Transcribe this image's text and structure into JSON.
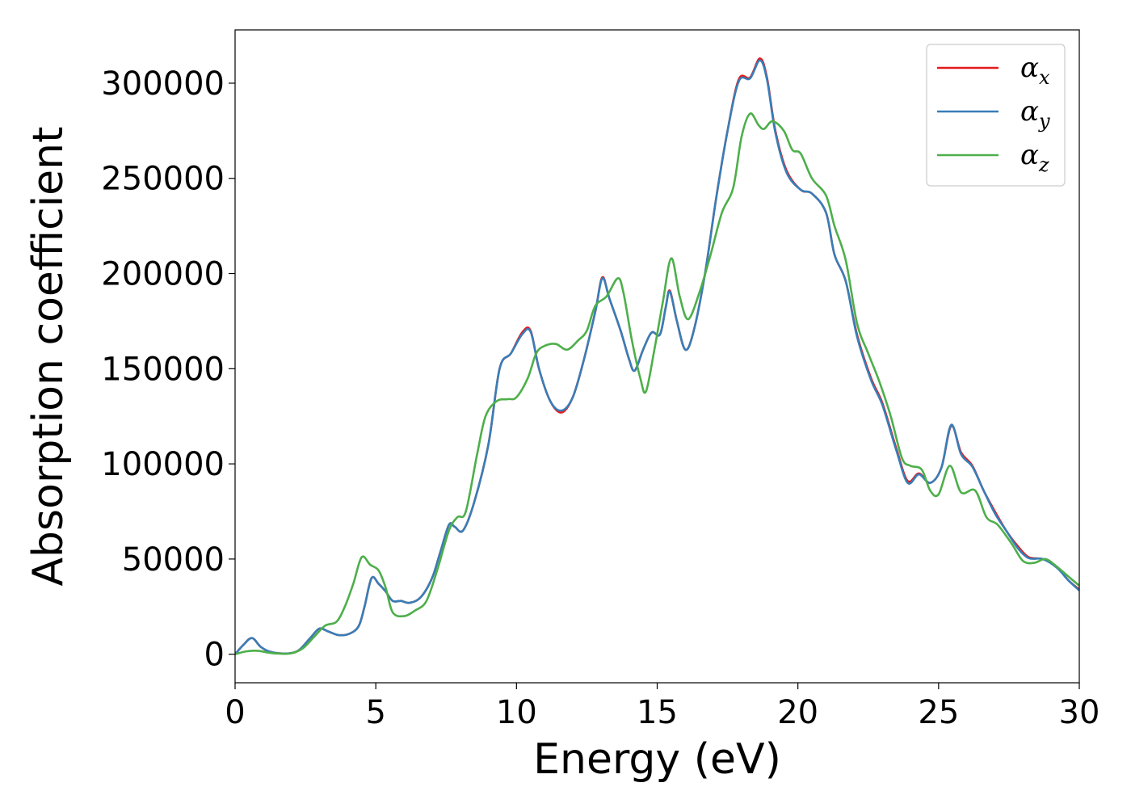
{
  "chart_data": {
    "type": "line",
    "title": "",
    "xlabel": "Energy (eV)",
    "ylabel": "Absorption coefficient",
    "xlim": [
      0,
      30
    ],
    "ylim": [
      -15000,
      328000
    ],
    "xticks": [
      0,
      5,
      10,
      15,
      20,
      25,
      30
    ],
    "yticks": [
      0,
      50000,
      100000,
      150000,
      200000,
      250000,
      300000
    ],
    "grid": false,
    "legend_position": "top-right",
    "series": [
      {
        "name": "α_x",
        "legend_main": "α",
        "legend_sub": "x",
        "color": "#e41a1c",
        "points": [
          [
            0,
            0
          ],
          [
            0.3,
            5000
          ],
          [
            0.6,
            8500
          ],
          [
            0.9,
            4000
          ],
          [
            1.2,
            1500
          ],
          [
            1.6,
            400
          ],
          [
            2.0,
            600
          ],
          [
            2.3,
            2500
          ],
          [
            2.7,
            9000
          ],
          [
            3.0,
            13500
          ],
          [
            3.3,
            12000
          ],
          [
            3.7,
            10000
          ],
          [
            4.1,
            11000
          ],
          [
            4.4,
            15000
          ],
          [
            4.6,
            25000
          ],
          [
            4.85,
            40000
          ],
          [
            5.1,
            37000
          ],
          [
            5.35,
            33000
          ],
          [
            5.6,
            28000
          ],
          [
            5.9,
            28000
          ],
          [
            6.2,
            27000
          ],
          [
            6.6,
            30000
          ],
          [
            7.0,
            40000
          ],
          [
            7.3,
            54000
          ],
          [
            7.6,
            68000
          ],
          [
            7.8,
            67000
          ],
          [
            8.1,
            65000
          ],
          [
            8.5,
            80000
          ],
          [
            9.0,
            110000
          ],
          [
            9.4,
            150000
          ],
          [
            9.8,
            158000
          ],
          [
            10.2,
            169000
          ],
          [
            10.5,
            170000
          ],
          [
            10.8,
            150000
          ],
          [
            11.2,
            133000
          ],
          [
            11.6,
            127000
          ],
          [
            12.0,
            135000
          ],
          [
            12.4,
            155000
          ],
          [
            12.8,
            180000
          ],
          [
            13.05,
            198000
          ],
          [
            13.3,
            187000
          ],
          [
            13.7,
            170000
          ],
          [
            14.0,
            155000
          ],
          [
            14.2,
            149000
          ],
          [
            14.5,
            160000
          ],
          [
            14.8,
            169000
          ],
          [
            15.1,
            168000
          ],
          [
            15.3,
            182000
          ],
          [
            15.45,
            191000
          ],
          [
            15.7,
            175000
          ],
          [
            16.0,
            160000
          ],
          [
            16.3,
            170000
          ],
          [
            16.7,
            200000
          ],
          [
            17.1,
            240000
          ],
          [
            17.5,
            275000
          ],
          [
            17.9,
            302000
          ],
          [
            18.3,
            303000
          ],
          [
            18.65,
            313000
          ],
          [
            18.9,
            303000
          ],
          [
            19.2,
            275000
          ],
          [
            19.6,
            254000
          ],
          [
            20.1,
            244000
          ],
          [
            20.5,
            242000
          ],
          [
            21.0,
            232000
          ],
          [
            21.3,
            210000
          ],
          [
            21.7,
            196000
          ],
          [
            22.1,
            168000
          ],
          [
            22.6,
            145000
          ],
          [
            23.0,
            132000
          ],
          [
            23.5,
            108000
          ],
          [
            23.9,
            91000
          ],
          [
            24.3,
            95000
          ],
          [
            24.7,
            90000
          ],
          [
            25.1,
            98000
          ],
          [
            25.45,
            120000
          ],
          [
            25.8,
            106000
          ],
          [
            26.2,
            99000
          ],
          [
            26.6,
            86000
          ],
          [
            27.0,
            75000
          ],
          [
            27.4,
            65000
          ],
          [
            27.8,
            57000
          ],
          [
            28.2,
            51000
          ],
          [
            28.7,
            50000
          ],
          [
            29.2,
            46000
          ],
          [
            29.6,
            39000
          ],
          [
            30,
            34000
          ]
        ]
      },
      {
        "name": "α_y",
        "legend_main": "α",
        "legend_sub": "y",
        "color": "#377eb8",
        "points": [
          [
            0,
            0
          ],
          [
            0.3,
            5000
          ],
          [
            0.6,
            8500
          ],
          [
            0.9,
            4000
          ],
          [
            1.2,
            1500
          ],
          [
            1.6,
            400
          ],
          [
            2.0,
            600
          ],
          [
            2.3,
            2500
          ],
          [
            2.7,
            9000
          ],
          [
            3.0,
            13500
          ],
          [
            3.3,
            12000
          ],
          [
            3.7,
            10000
          ],
          [
            4.1,
            11000
          ],
          [
            4.4,
            15000
          ],
          [
            4.6,
            25000
          ],
          [
            4.85,
            40000
          ],
          [
            5.1,
            37000
          ],
          [
            5.35,
            33000
          ],
          [
            5.6,
            28000
          ],
          [
            5.9,
            28000
          ],
          [
            6.2,
            27000
          ],
          [
            6.6,
            30000
          ],
          [
            7.0,
            40000
          ],
          [
            7.3,
            54000
          ],
          [
            7.6,
            68000
          ],
          [
            7.8,
            67000
          ],
          [
            8.1,
            65000
          ],
          [
            8.5,
            80000
          ],
          [
            9.0,
            110000
          ],
          [
            9.4,
            150000
          ],
          [
            9.8,
            158000
          ],
          [
            10.2,
            168000
          ],
          [
            10.5,
            169500
          ],
          [
            10.8,
            150000
          ],
          [
            11.2,
            133000
          ],
          [
            11.6,
            128000
          ],
          [
            12.0,
            135000
          ],
          [
            12.4,
            155000
          ],
          [
            12.8,
            180000
          ],
          [
            13.05,
            197500
          ],
          [
            13.3,
            187000
          ],
          [
            13.7,
            170000
          ],
          [
            14.0,
            155000
          ],
          [
            14.2,
            149000
          ],
          [
            14.5,
            160000
          ],
          [
            14.8,
            169000
          ],
          [
            15.1,
            168000
          ],
          [
            15.3,
            182000
          ],
          [
            15.45,
            190500
          ],
          [
            15.7,
            175000
          ],
          [
            16.0,
            160000
          ],
          [
            16.3,
            170000
          ],
          [
            16.7,
            200000
          ],
          [
            17.1,
            240000
          ],
          [
            17.5,
            275000
          ],
          [
            17.9,
            301000
          ],
          [
            18.3,
            302500
          ],
          [
            18.65,
            312000
          ],
          [
            18.9,
            302000
          ],
          [
            19.2,
            274000
          ],
          [
            19.6,
            253000
          ],
          [
            20.1,
            244000
          ],
          [
            20.5,
            242000
          ],
          [
            21.0,
            232000
          ],
          [
            21.3,
            210000
          ],
          [
            21.7,
            196000
          ],
          [
            22.1,
            167000
          ],
          [
            22.6,
            144000
          ],
          [
            23.0,
            131000
          ],
          [
            23.5,
            107000
          ],
          [
            23.9,
            90000
          ],
          [
            24.3,
            94500
          ],
          [
            24.7,
            90000
          ],
          [
            25.1,
            98000
          ],
          [
            25.45,
            120500
          ],
          [
            25.8,
            105000
          ],
          [
            26.2,
            98500
          ],
          [
            26.6,
            86000
          ],
          [
            27.0,
            74000
          ],
          [
            27.4,
            65000
          ],
          [
            27.8,
            56000
          ],
          [
            28.2,
            50500
          ],
          [
            28.7,
            50000
          ],
          [
            29.2,
            45500
          ],
          [
            29.6,
            39000
          ],
          [
            30,
            33500
          ]
        ]
      },
      {
        "name": "α_z",
        "legend_main": "α",
        "legend_sub": "z",
        "color": "#4daf4a",
        "points": [
          [
            0,
            0
          ],
          [
            0.4,
            1500
          ],
          [
            0.8,
            1800
          ],
          [
            1.2,
            800
          ],
          [
            1.6,
            300
          ],
          [
            2.0,
            500
          ],
          [
            2.4,
            3000
          ],
          [
            2.8,
            9000
          ],
          [
            3.2,
            15000
          ],
          [
            3.6,
            17000
          ],
          [
            3.9,
            25000
          ],
          [
            4.2,
            37000
          ],
          [
            4.5,
            51000
          ],
          [
            4.8,
            47000
          ],
          [
            5.1,
            44000
          ],
          [
            5.35,
            35000
          ],
          [
            5.6,
            22000
          ],
          [
            6.0,
            20000
          ],
          [
            6.4,
            23000
          ],
          [
            6.8,
            28000
          ],
          [
            7.2,
            45000
          ],
          [
            7.6,
            65000
          ],
          [
            7.9,
            72000
          ],
          [
            8.2,
            75000
          ],
          [
            8.6,
            105000
          ],
          [
            8.9,
            125000
          ],
          [
            9.3,
            133000
          ],
          [
            9.7,
            134000
          ],
          [
            10.0,
            135000
          ],
          [
            10.4,
            145000
          ],
          [
            10.7,
            158000
          ],
          [
            11.0,
            162000
          ],
          [
            11.4,
            163000
          ],
          [
            11.8,
            160000
          ],
          [
            12.2,
            165000
          ],
          [
            12.5,
            170000
          ],
          [
            12.8,
            183000
          ],
          [
            13.2,
            188000
          ],
          [
            13.6,
            197500
          ],
          [
            13.8,
            190000
          ],
          [
            14.1,
            165000
          ],
          [
            14.4,
            145000
          ],
          [
            14.6,
            138000
          ],
          [
            14.9,
            160000
          ],
          [
            15.2,
            185000
          ],
          [
            15.5,
            208000
          ],
          [
            15.8,
            188000
          ],
          [
            16.1,
            176000
          ],
          [
            16.5,
            190000
          ],
          [
            16.9,
            210000
          ],
          [
            17.3,
            232000
          ],
          [
            17.7,
            245000
          ],
          [
            18.0,
            272000
          ],
          [
            18.3,
            284000
          ],
          [
            18.6,
            278000
          ],
          [
            18.8,
            276000
          ],
          [
            19.1,
            280000
          ],
          [
            19.5,
            275000
          ],
          [
            19.8,
            265000
          ],
          [
            20.1,
            263000
          ],
          [
            20.5,
            250000
          ],
          [
            21.0,
            241000
          ],
          [
            21.3,
            225000
          ],
          [
            21.7,
            207000
          ],
          [
            22.1,
            174000
          ],
          [
            22.5,
            158000
          ],
          [
            22.9,
            143000
          ],
          [
            23.3,
            125000
          ],
          [
            23.7,
            103000
          ],
          [
            24.0,
            99000
          ],
          [
            24.4,
            97000
          ],
          [
            24.7,
            86000
          ],
          [
            25.0,
            84000
          ],
          [
            25.4,
            99000
          ],
          [
            25.8,
            85000
          ],
          [
            26.3,
            86000
          ],
          [
            26.7,
            72000
          ],
          [
            27.1,
            68000
          ],
          [
            27.6,
            58000
          ],
          [
            28.0,
            49000
          ],
          [
            28.4,
            48000
          ],
          [
            28.8,
            50000
          ],
          [
            29.2,
            46000
          ],
          [
            29.6,
            41000
          ],
          [
            30,
            36000
          ]
        ]
      }
    ]
  }
}
